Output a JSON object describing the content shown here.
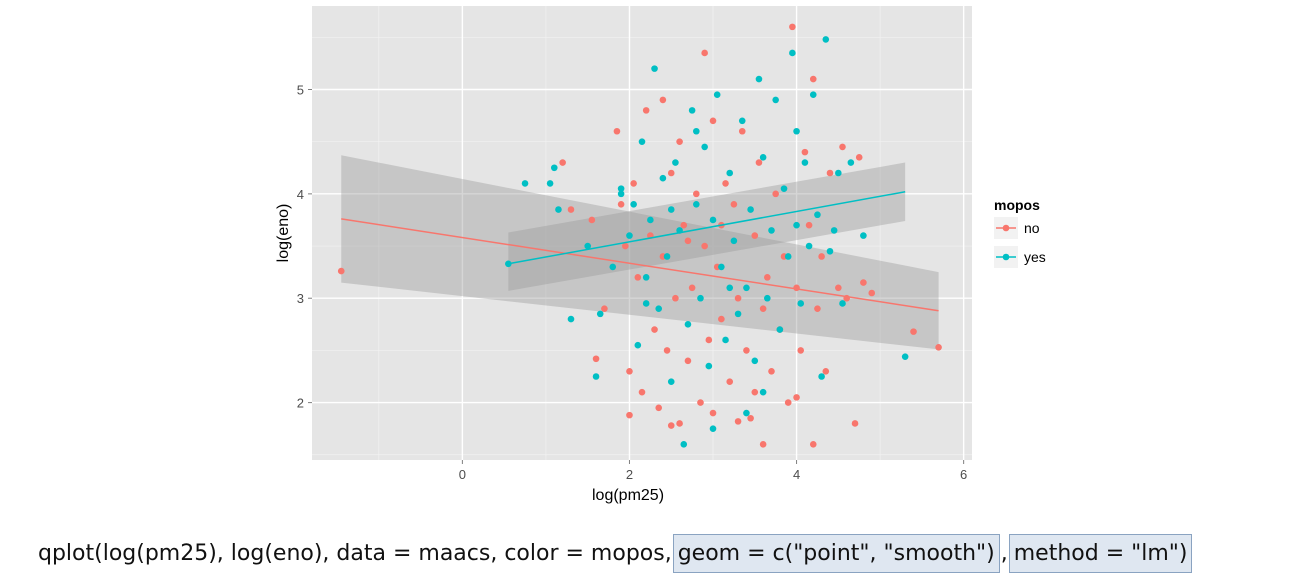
{
  "chart_data": {
    "type": "scatter",
    "title": "",
    "xlabel": "log(pm25)",
    "ylabel": "log(eno)",
    "xlim": [
      -1.8,
      6.1
    ],
    "ylim": [
      1.45,
      5.8
    ],
    "x_ticks": [
      0,
      2,
      4,
      6
    ],
    "y_ticks": [
      2,
      3,
      4,
      5
    ],
    "grid": true,
    "legend": {
      "title": "mopos",
      "position": "right",
      "entries": [
        "no",
        "yes"
      ]
    },
    "colors": {
      "no": "#f8766d",
      "yes": "#00bfc4",
      "band": "#999999",
      "panel": "#e5e5e5"
    },
    "series": [
      {
        "name": "no",
        "color": "#f8766d",
        "fit": {
          "x": [
            -1.45,
            5.7
          ],
          "y": [
            3.76,
            2.88
          ]
        },
        "band_upper": {
          "x": [
            -1.45,
            5.7
          ],
          "y": [
            4.37,
            3.25
          ]
        },
        "band_lower": {
          "x": [
            -1.45,
            5.7
          ],
          "y": [
            3.15,
            2.51
          ]
        },
        "points": [
          [
            -1.45,
            3.26
          ],
          [
            1.2,
            4.3
          ],
          [
            1.3,
            3.85
          ],
          [
            1.55,
            3.75
          ],
          [
            1.6,
            2.42
          ],
          [
            1.7,
            2.9
          ],
          [
            1.85,
            4.6
          ],
          [
            1.9,
            3.9
          ],
          [
            1.95,
            3.5
          ],
          [
            2.0,
            2.3
          ],
          [
            2.0,
            1.88
          ],
          [
            2.05,
            4.1
          ],
          [
            2.1,
            3.2
          ],
          [
            2.15,
            2.1
          ],
          [
            2.2,
            4.8
          ],
          [
            2.25,
            3.6
          ],
          [
            2.3,
            2.7
          ],
          [
            2.35,
            1.95
          ],
          [
            2.4,
            4.9
          ],
          [
            2.4,
            3.4
          ],
          [
            2.45,
            2.5
          ],
          [
            2.5,
            4.2
          ],
          [
            2.55,
            3.0
          ],
          [
            2.6,
            1.8
          ],
          [
            2.6,
            4.5
          ],
          [
            2.65,
            3.7
          ],
          [
            2.7,
            2.4
          ],
          [
            2.75,
            3.1
          ],
          [
            2.8,
            4.0
          ],
          [
            2.85,
            2.0
          ],
          [
            2.9,
            5.35
          ],
          [
            2.9,
            3.5
          ],
          [
            2.95,
            2.6
          ],
          [
            3.0,
            4.7
          ],
          [
            3.0,
            1.9
          ],
          [
            3.05,
            3.3
          ],
          [
            3.1,
            2.8
          ],
          [
            3.15,
            4.1
          ],
          [
            3.2,
            2.2
          ],
          [
            3.25,
            3.9
          ],
          [
            3.3,
            3.0
          ],
          [
            3.35,
            4.6
          ],
          [
            3.4,
            2.5
          ],
          [
            3.45,
            1.85
          ],
          [
            3.5,
            3.6
          ],
          [
            3.55,
            4.3
          ],
          [
            3.6,
            2.9
          ],
          [
            3.6,
            1.6
          ],
          [
            3.65,
            3.2
          ],
          [
            3.7,
            2.3
          ],
          [
            3.75,
            4.0
          ],
          [
            3.8,
            2.7
          ],
          [
            3.85,
            3.4
          ],
          [
            3.9,
            2.0
          ],
          [
            3.95,
            5.6
          ],
          [
            4.0,
            3.1
          ],
          [
            4.05,
            2.5
          ],
          [
            4.1,
            4.4
          ],
          [
            4.15,
            3.7
          ],
          [
            4.2,
            5.1
          ],
          [
            4.2,
            1.6
          ],
          [
            4.25,
            2.9
          ],
          [
            4.3,
            3.4
          ],
          [
            4.35,
            2.3
          ],
          [
            4.4,
            4.2
          ],
          [
            4.5,
            3.1
          ],
          [
            4.55,
            4.45
          ],
          [
            4.6,
            3.0
          ],
          [
            4.7,
            1.8
          ],
          [
            4.75,
            4.35
          ],
          [
            4.8,
            3.15
          ],
          [
            4.9,
            3.05
          ],
          [
            5.4,
            2.68
          ],
          [
            5.7,
            2.53
          ],
          [
            2.5,
            1.78
          ],
          [
            3.3,
            1.82
          ],
          [
            4.0,
            2.05
          ],
          [
            2.7,
            3.55
          ],
          [
            3.1,
            3.7
          ],
          [
            3.5,
            2.1
          ]
        ]
      },
      {
        "name": "yes",
        "color": "#00bfc4",
        "fit": {
          "x": [
            0.55,
            5.3
          ],
          "y": [
            3.33,
            4.02
          ]
        },
        "band_upper": {
          "x": [
            0.55,
            5.3
          ],
          "y": [
            3.63,
            4.3
          ]
        },
        "band_lower": {
          "x": [
            0.55,
            5.3
          ],
          "y": [
            3.07,
            3.74
          ]
        },
        "points": [
          [
            0.55,
            3.33
          ],
          [
            0.75,
            4.1
          ],
          [
            1.05,
            4.1
          ],
          [
            1.1,
            4.25
          ],
          [
            1.15,
            3.85
          ],
          [
            1.3,
            2.8
          ],
          [
            1.5,
            3.5
          ],
          [
            1.6,
            2.25
          ],
          [
            1.65,
            2.85
          ],
          [
            1.8,
            3.3
          ],
          [
            1.9,
            4.0
          ],
          [
            2.0,
            3.6
          ],
          [
            2.05,
            3.9
          ],
          [
            2.1,
            2.55
          ],
          [
            2.15,
            4.5
          ],
          [
            2.2,
            3.2
          ],
          [
            2.25,
            3.75
          ],
          [
            2.3,
            5.2
          ],
          [
            2.35,
            2.9
          ],
          [
            2.4,
            4.15
          ],
          [
            2.45,
            3.4
          ],
          [
            2.5,
            2.2
          ],
          [
            2.55,
            4.3
          ],
          [
            2.6,
            3.65
          ],
          [
            2.65,
            1.6
          ],
          [
            2.7,
            2.75
          ],
          [
            2.75,
            4.8
          ],
          [
            2.8,
            3.9
          ],
          [
            2.85,
            3.0
          ],
          [
            2.9,
            4.45
          ],
          [
            2.95,
            2.35
          ],
          [
            3.0,
            3.75
          ],
          [
            3.05,
            4.95
          ],
          [
            3.1,
            3.3
          ],
          [
            3.15,
            2.6
          ],
          [
            3.2,
            4.2
          ],
          [
            3.25,
            3.55
          ],
          [
            3.3,
            2.85
          ],
          [
            3.35,
            4.7
          ],
          [
            3.4,
            3.1
          ],
          [
            3.45,
            3.85
          ],
          [
            3.5,
            2.4
          ],
          [
            3.55,
            5.1
          ],
          [
            3.6,
            4.35
          ],
          [
            3.65,
            3.0
          ],
          [
            3.7,
            3.65
          ],
          [
            3.75,
            4.9
          ],
          [
            3.8,
            2.7
          ],
          [
            3.85,
            4.05
          ],
          [
            3.9,
            3.4
          ],
          [
            3.95,
            5.35
          ],
          [
            4.0,
            3.7
          ],
          [
            4.05,
            2.95
          ],
          [
            4.1,
            4.3
          ],
          [
            4.15,
            3.5
          ],
          [
            4.2,
            4.95
          ],
          [
            4.25,
            3.8
          ],
          [
            4.3,
            2.25
          ],
          [
            4.35,
            5.48
          ],
          [
            4.4,
            3.45
          ],
          [
            4.45,
            3.65
          ],
          [
            4.5,
            4.2
          ],
          [
            4.55,
            2.95
          ],
          [
            4.65,
            4.3
          ],
          [
            4.8,
            3.6
          ],
          [
            5.3,
            2.44
          ],
          [
            1.9,
            4.05
          ],
          [
            2.5,
            3.85
          ],
          [
            3.0,
            1.75
          ],
          [
            3.6,
            2.1
          ],
          [
            2.2,
            2.95
          ],
          [
            2.8,
            4.6
          ],
          [
            3.4,
            1.9
          ],
          [
            4.0,
            4.6
          ],
          [
            3.2,
            3.1
          ]
        ]
      }
    ]
  },
  "caption": {
    "prefix": "qplot(log(pm25), log(eno), data = maacs, color = mopos,",
    "geom": " geom = c(\"point\", \"smooth\")",
    "sep": ",",
    "method": " method = \"lm\")"
  }
}
